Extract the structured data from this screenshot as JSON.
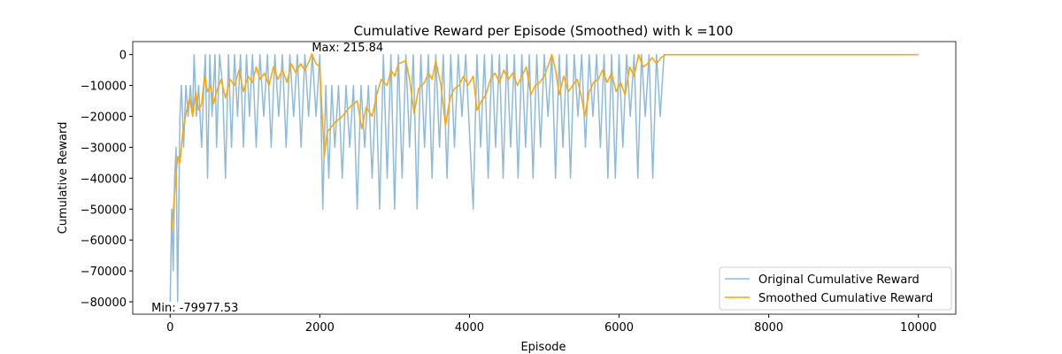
{
  "chart_data": {
    "type": "line",
    "title": "Cumulative Reward per Episode (Smoothed) with k =100",
    "xlabel": "Episode",
    "ylabel": "Cumulative Reward",
    "xlim": [
      -500,
      10500
    ],
    "ylim": [
      -84000,
      4200
    ],
    "xticks": [
      0,
      2000,
      4000,
      6000,
      8000,
      10000
    ],
    "yticks": [
      {
        "value": -80000,
        "label": "−80000"
      },
      {
        "value": -70000,
        "label": "−70000"
      },
      {
        "value": -60000,
        "label": "−60000"
      },
      {
        "value": -50000,
        "label": "−50000"
      },
      {
        "value": -40000,
        "label": "−40000"
      },
      {
        "value": -30000,
        "label": "−30000"
      },
      {
        "value": -20000,
        "label": "−20000"
      },
      {
        "value": -10000,
        "label": "−10000"
      },
      0
    ],
    "legend": "lower right",
    "series": [
      {
        "name": "Original Cumulative Reward",
        "color": "#1f77b4",
        "alpha": 0.5,
        "x": [
          0,
          20,
          40,
          60,
          80,
          100,
          130,
          150,
          180,
          210,
          240,
          270,
          300,
          320,
          350,
          380,
          420,
          450,
          470,
          500,
          530,
          560,
          600,
          620,
          660,
          700,
          740,
          780,
          820,
          860,
          900,
          940,
          980,
          1020,
          1060,
          1100,
          1150,
          1200,
          1250,
          1300,
          1350,
          1400,
          1450,
          1500,
          1550,
          1600,
          1650,
          1700,
          1750,
          1800,
          1850,
          1900,
          1950,
          2000,
          2040,
          2080,
          2120,
          2160,
          2200,
          2250,
          2300,
          2350,
          2400,
          2450,
          2500,
          2550,
          2600,
          2650,
          2700,
          2750,
          2800,
          2850,
          2900,
          2950,
          3000,
          3050,
          3100,
          3150,
          3200,
          3250,
          3300,
          3350,
          3400,
          3450,
          3500,
          3550,
          3600,
          3650,
          3700,
          3750,
          3800,
          3850,
          3900,
          3950,
          4050,
          4100,
          4150,
          4200,
          4250,
          4300,
          4350,
          4400,
          4450,
          4500,
          4550,
          4600,
          4650,
          4700,
          4750,
          4800,
          4850,
          4900,
          4950,
          5000,
          5050,
          5100,
          5150,
          5200,
          5250,
          5300,
          5350,
          5400,
          5450,
          5500,
          5550,
          5600,
          5650,
          5700,
          5750,
          5800,
          5850,
          5900,
          5950,
          6000,
          6050,
          6100,
          6150,
          6200,
          6250,
          6300,
          6350,
          6400,
          6450,
          6500,
          6550,
          6600,
          6650,
          10000
        ],
        "values": [
          -80000,
          -50000,
          -70000,
          -40000,
          -30000,
          -80000,
          -20000,
          -10000,
          -30000,
          -10000,
          -20000,
          -10000,
          -20000,
          0,
          -20000,
          -10000,
          -30000,
          -10000,
          0,
          -40000,
          0,
          -20000,
          0,
          -30000,
          0,
          -10000,
          -40000,
          0,
          -30000,
          0,
          -20000,
          0,
          -30000,
          0,
          -20000,
          0,
          -30000,
          0,
          -20000,
          0,
          -30000,
          0,
          -20000,
          0,
          -30000,
          0,
          -20000,
          0,
          -30000,
          0,
          -20000,
          0,
          -20000,
          0,
          -50000,
          -10000,
          -40000,
          -10000,
          -30000,
          -10000,
          -40000,
          -10000,
          -30000,
          -10000,
          -50000,
          -10000,
          -30000,
          -10000,
          -40000,
          -10000,
          -50000,
          0,
          -40000,
          0,
          -50000,
          0,
          -40000,
          0,
          -30000,
          0,
          -50000,
          0,
          -30000,
          0,
          -40000,
          0,
          -30000,
          0,
          -40000,
          0,
          -30000,
          0,
          -20000,
          0,
          -50000,
          0,
          -30000,
          0,
          -40000,
          0,
          -30000,
          0,
          -40000,
          0,
          -30000,
          0,
          -40000,
          0,
          -30000,
          0,
          -40000,
          0,
          -30000,
          0,
          -20000,
          0,
          -40000,
          0,
          -30000,
          0,
          -40000,
          0,
          -20000,
          0,
          -30000,
          0,
          -20000,
          0,
          -30000,
          0,
          -40000,
          0,
          -40000,
          0,
          -30000,
          0,
          -20000,
          0,
          -40000,
          0,
          -20000,
          0,
          -40000,
          0,
          -20000,
          0,
          0,
          0
        ]
      },
      {
        "name": "Smoothed Cumulative Reward",
        "color": "#ffa500",
        "alpha": 1,
        "x": [
          20,
          60,
          100,
          130,
          170,
          220,
          260,
          300,
          340,
          380,
          420,
          460,
          500,
          540,
          580,
          620,
          680,
          740,
          800,
          860,
          920,
          980,
          1040,
          1100,
          1150,
          1200,
          1260,
          1320,
          1380,
          1440,
          1500,
          1560,
          1620,
          1680,
          1740,
          1800,
          1860,
          1893,
          1950,
          2000,
          2060,
          2100,
          2200,
          2300,
          2400,
          2500,
          2560,
          2620,
          2700,
          2760,
          2820,
          2900,
          2950,
          3000,
          3050,
          3150,
          3200,
          3260,
          3320,
          3400,
          3450,
          3500,
          3550,
          3620,
          3680,
          3740,
          3800,
          3860,
          3920,
          3980,
          4050,
          4100,
          4160,
          4220,
          4280,
          4340,
          4400,
          4460,
          4520,
          4580,
          4640,
          4700,
          4760,
          4820,
          4880,
          4940,
          5000,
          5060,
          5100,
          5150,
          5200,
          5260,
          5320,
          5380,
          5440,
          5500,
          5540,
          5600,
          5660,
          5720,
          5780,
          5840,
          5900,
          5960,
          6020,
          6080,
          6140,
          6200,
          6260,
          6320,
          6380,
          6440,
          6500,
          6560,
          6620,
          6700,
          10000
        ],
        "values": [
          -57000,
          -45000,
          -33000,
          -35000,
          -25000,
          -18000,
          -14000,
          -20000,
          -12000,
          -18000,
          -16000,
          -7000,
          -12000,
          -10000,
          -16000,
          -12000,
          -8000,
          -14000,
          -8000,
          -10000,
          -5000,
          -12000,
          -7000,
          -9000,
          -4000,
          -8000,
          -6000,
          -10000,
          -4000,
          -8000,
          -5000,
          -9000,
          -3000,
          -6000,
          -3000,
          -5000,
          -2000,
          215.84,
          -3000,
          -4000,
          -33000,
          -25000,
          -22000,
          -20000,
          -17000,
          -15000,
          -24000,
          -17000,
          -20000,
          -13000,
          -8000,
          -10000,
          -5000,
          -7000,
          -3000,
          -2000,
          -8000,
          -19000,
          -11000,
          -9000,
          -6000,
          -8000,
          -2000,
          -10000,
          -23000,
          -14000,
          -11000,
          -10000,
          -7000,
          -10000,
          -7000,
          -18000,
          -15000,
          -13000,
          -8000,
          -6000,
          -9000,
          -5000,
          -8000,
          -6000,
          -10000,
          -7000,
          -4000,
          -13000,
          -10000,
          -9000,
          -7000,
          -3000,
          0,
          -5000,
          -13000,
          -7000,
          -12000,
          -10000,
          -8000,
          -14000,
          -20000,
          -12000,
          -9000,
          -8000,
          -5000,
          -9000,
          -6000,
          -12000,
          -9000,
          -13000,
          -4000,
          -7000,
          0,
          -4000,
          -3000,
          -1000,
          -3000,
          -1000,
          0,
          0,
          0
        ]
      }
    ],
    "annotations": [
      {
        "text": "Max: 215.84",
        "x": 1893,
        "y": 215.84,
        "color": "#008000",
        "valign": "bottom"
      },
      {
        "text": "Min: -79977.53",
        "x": -250,
        "y": -79977.53,
        "color": "#ff0000",
        "valign": "top"
      }
    ]
  }
}
